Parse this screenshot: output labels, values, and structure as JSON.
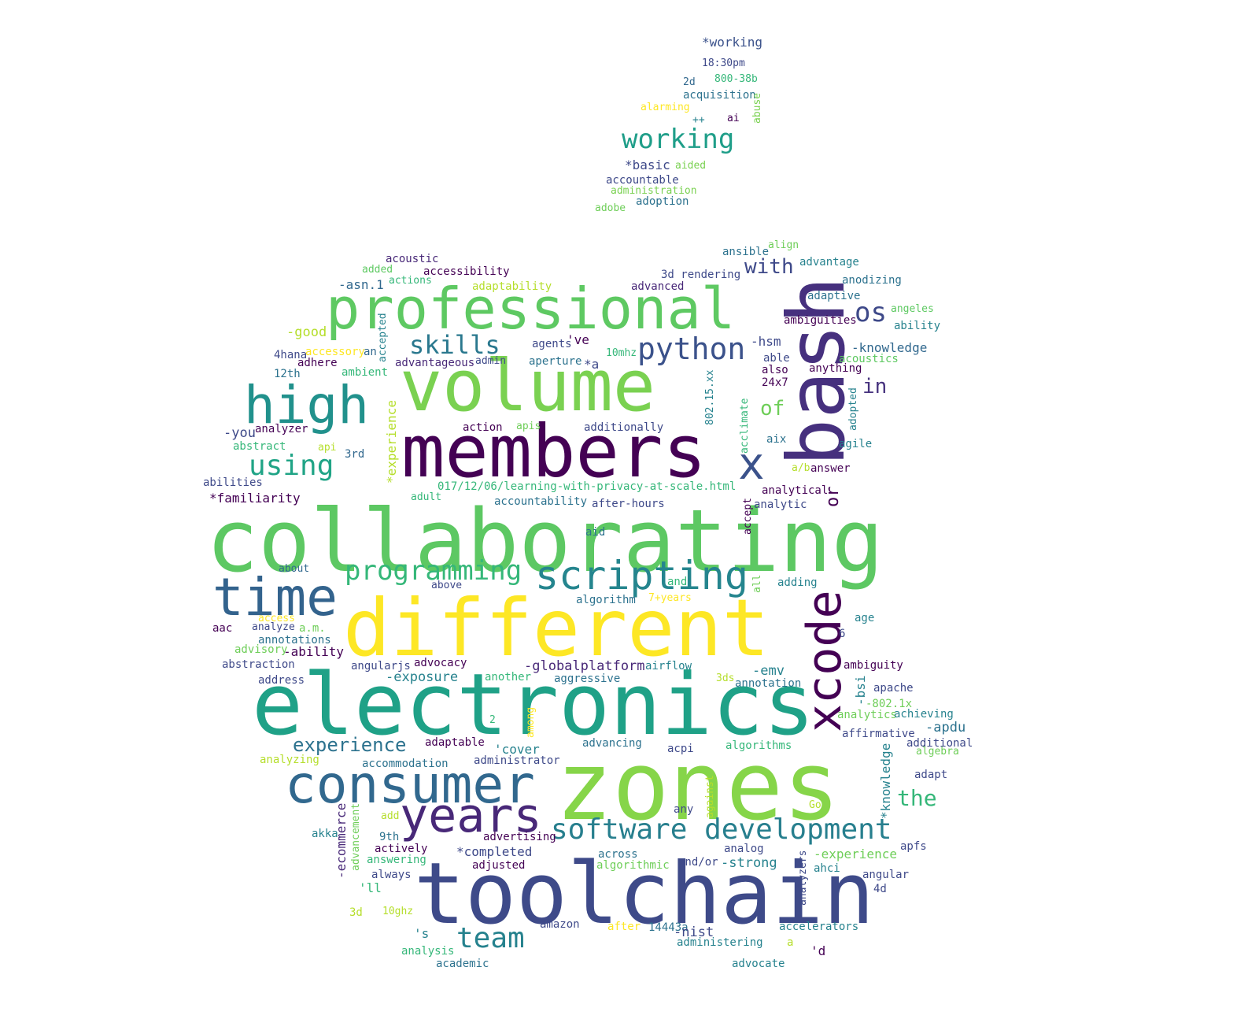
{
  "palette": [
    "#440154",
    "#3b528b",
    "#21908d",
    "#5dc963",
    "#fde725"
  ],
  "words": [
    {
      "text": "collaborating",
      "color": "#5dc863",
      "weight": 1.0
    },
    {
      "text": "zones",
      "color": "#86d549",
      "weight": 0.95
    },
    {
      "text": "toolchain",
      "color": "#3e4a89",
      "weight": 0.9
    },
    {
      "text": "electronics",
      "color": "#1fa187",
      "weight": 0.88
    },
    {
      "text": "different",
      "color": "#fde725",
      "weight": 0.85
    },
    {
      "text": "members",
      "color": "#440154",
      "weight": 0.84
    },
    {
      "text": "volume",
      "color": "#7ad151",
      "weight": 0.82
    },
    {
      "text": "bash",
      "color": "#46307e",
      "weight": 0.8
    },
    {
      "text": "professional",
      "color": "#5ec962",
      "weight": 0.7
    },
    {
      "text": "consumer",
      "color": "#31688e",
      "weight": 0.66
    },
    {
      "text": "xcode",
      "color": "#440154",
      "weight": 0.64
    },
    {
      "text": "high",
      "color": "#21918c",
      "weight": 0.62
    },
    {
      "text": "time",
      "color": "#33638d",
      "weight": 0.6
    },
    {
      "text": "years",
      "color": "#482878",
      "weight": 0.55
    },
    {
      "text": "x",
      "color": "#3b528b",
      "weight": 0.5
    },
    {
      "text": "scripting",
      "color": "#25858e",
      "weight": 0.45
    },
    {
      "text": "software development",
      "color": "#277f8e",
      "weight": 0.4
    },
    {
      "text": "python",
      "color": "#3b528b",
      "weight": 0.36
    },
    {
      "text": "programming",
      "color": "#35b779",
      "weight": 0.34
    },
    {
      "text": "working",
      "color": "#1f9e89",
      "weight": 0.34
    },
    {
      "text": "using",
      "color": "#20a486",
      "weight": 0.33
    },
    {
      "text": "skills",
      "color": "#2a788e",
      "weight": 0.32
    },
    {
      "text": "team",
      "color": "#26828e",
      "weight": 0.32
    },
    {
      "text": "os",
      "color": "#3e4989",
      "weight": 0.32
    },
    {
      "text": "experience",
      "color": "#2c728e",
      "weight": 0.28
    },
    {
      "text": "the",
      "color": "#35b779",
      "weight": 0.28
    },
    {
      "text": "with",
      "color": "#3e4989",
      "weight": 0.26
    },
    {
      "text": "in",
      "color": "#46327e",
      "weight": 0.25
    },
    {
      "text": "of",
      "color": "#6ece58",
      "weight": 0.25
    },
    {
      "text": "or",
      "color": "#440154",
      "weight": 0.22
    },
    {
      "text": "*working",
      "color": "#3b528b",
      "weight": 0.15
    },
    {
      "text": "18:30pm",
      "color": "#3e4989",
      "weight": 0.12
    },
    {
      "text": "2d",
      "color": "#31688e",
      "weight": 0.12
    },
    {
      "text": "800-38b",
      "color": "#35b779",
      "weight": 0.12
    },
    {
      "text": "acquisition",
      "color": "#2c728e",
      "weight": 0.12
    },
    {
      "text": "abuse",
      "color": "#7ad151",
      "weight": 0.12
    },
    {
      "text": "alarming",
      "color": "#fde725",
      "weight": 0.12
    },
    {
      "text": "++",
      "color": "#26828e",
      "weight": 0.12
    },
    {
      "text": "ai",
      "color": "#440154",
      "weight": 0.12
    },
    {
      "text": "*basic",
      "color": "#3e4989",
      "weight": 0.14
    },
    {
      "text": "aided",
      "color": "#7ad151",
      "weight": 0.12
    },
    {
      "text": "accountable",
      "color": "#3e4989",
      "weight": 0.12
    },
    {
      "text": "administration",
      "color": "#7ad151",
      "weight": 0.12
    },
    {
      "text": "adobe",
      "color": "#6ece58",
      "weight": 0.12
    },
    {
      "text": "adoption",
      "color": "#2c728e",
      "weight": 0.12
    },
    {
      "text": "acoustic",
      "color": "#482878",
      "weight": 0.12
    },
    {
      "text": "added",
      "color": "#5ec962",
      "weight": 0.12
    },
    {
      "text": "accessibility",
      "color": "#440154",
      "weight": 0.12
    },
    {
      "text": "actions",
      "color": "#35b779",
      "weight": 0.12
    },
    {
      "text": "-asn.1",
      "color": "#31688e",
      "weight": 0.14
    },
    {
      "text": "adaptability",
      "color": "#b5de2b",
      "weight": 0.12
    },
    {
      "text": "advanced",
      "color": "#482878",
      "weight": 0.12
    },
    {
      "text": "3d rendering",
      "color": "#3e4989",
      "weight": 0.12
    },
    {
      "text": "ansible",
      "color": "#2c728e",
      "weight": 0.12
    },
    {
      "text": "align",
      "color": "#6ece58",
      "weight": 0.12
    },
    {
      "text": "advantage",
      "color": "#26828e",
      "weight": 0.12
    },
    {
      "text": "anodizing",
      "color": "#2c728e",
      "weight": 0.12
    },
    {
      "text": "adaptive",
      "color": "#2c728e",
      "weight": 0.12
    },
    {
      "text": "ambiguities",
      "color": "#440154",
      "weight": 0.12
    },
    {
      "text": "angeles",
      "color": "#5ec962",
      "weight": 0.12
    },
    {
      "text": "ability",
      "color": "#26828e",
      "weight": 0.12
    },
    {
      "text": "-good",
      "color": "#b5de2b",
      "weight": 0.14
    },
    {
      "text": "accepted",
      "color": "#26828e",
      "weight": 0.12
    },
    {
      "text": "agents",
      "color": "#3e4989",
      "weight": 0.12
    },
    {
      "text": "'ve",
      "color": "#440154",
      "weight": 0.14
    },
    {
      "text": "-hsm",
      "color": "#3e4989",
      "weight": 0.14
    },
    {
      "text": "-knowledge",
      "color": "#31688e",
      "weight": 0.14
    },
    {
      "text": "acoustics",
      "color": "#5ec962",
      "weight": 0.12
    },
    {
      "text": "4hana",
      "color": "#3e4989",
      "weight": 0.12
    },
    {
      "text": "accessory",
      "color": "#fde725",
      "weight": 0.12
    },
    {
      "text": "an",
      "color": "#31688e",
      "weight": 0.12
    },
    {
      "text": "adhere",
      "color": "#440154",
      "weight": 0.12
    },
    {
      "text": "advantageous",
      "color": "#482878",
      "weight": 0.12
    },
    {
      "text": "admin",
      "color": "#3e4989",
      "weight": 0.12
    },
    {
      "text": "aperture",
      "color": "#2c728e",
      "weight": 0.12
    },
    {
      "text": "*a",
      "color": "#3e4989",
      "weight": 0.14
    },
    {
      "text": "10mhz",
      "color": "#35b779",
      "weight": 0.12
    },
    {
      "text": "able",
      "color": "#3e4989",
      "weight": 0.12
    },
    {
      "text": "also",
      "color": "#440154",
      "weight": 0.12
    },
    {
      "text": "anything",
      "color": "#440154",
      "weight": 0.12
    },
    {
      "text": "12th",
      "color": "#2c728e",
      "weight": 0.12
    },
    {
      "text": "ambient",
      "color": "#35b779",
      "weight": 0.12
    },
    {
      "text": "24x7",
      "color": "#440154",
      "weight": 0.12
    },
    {
      "text": "802.15.xx",
      "color": "#26828e",
      "weight": 0.12
    },
    {
      "text": "*experience",
      "color": "#b5de2b",
      "weight": 0.14
    },
    {
      "text": "acclimate",
      "color": "#35b779",
      "weight": 0.12
    },
    {
      "text": "adopted",
      "color": "#26828e",
      "weight": 0.12
    },
    {
      "text": "action",
      "color": "#440154",
      "weight": 0.12
    },
    {
      "text": "apis",
      "color": "#6ece58",
      "weight": 0.12
    },
    {
      "text": "additionally",
      "color": "#3e4989",
      "weight": 0.12
    },
    {
      "text": "analyzer",
      "color": "#440154",
      "weight": 0.12
    },
    {
      "text": "-you",
      "color": "#3e4989",
      "weight": 0.14
    },
    {
      "text": "aix",
      "color": "#2c728e",
      "weight": 0.12
    },
    {
      "text": "agile",
      "color": "#26828e",
      "weight": 0.12
    },
    {
      "text": "abstract",
      "color": "#35b779",
      "weight": 0.12
    },
    {
      "text": "api",
      "color": "#b5de2b",
      "weight": 0.12
    },
    {
      "text": "3rd",
      "color": "#31688e",
      "weight": 0.12
    },
    {
      "text": "a/b",
      "color": "#b5de2b",
      "weight": 0.12
    },
    {
      "text": "answer",
      "color": "#440154",
      "weight": 0.12
    },
    {
      "text": "abilities",
      "color": "#3e4989",
      "weight": 0.12
    },
    {
      "text": "017/12/06/learning-with-privacy-at-scale.html",
      "color": "#35b779",
      "weight": 0.12
    },
    {
      "text": "analytical",
      "color": "#440154",
      "weight": 0.12
    },
    {
      "text": "*familiarity",
      "color": "#440154",
      "weight": 0.14
    },
    {
      "text": "adult",
      "color": "#35b779",
      "weight": 0.12
    },
    {
      "text": "accountability",
      "color": "#2c728e",
      "weight": 0.12
    },
    {
      "text": "after-hours",
      "color": "#3e4989",
      "weight": 0.12
    },
    {
      "text": "accept",
      "color": "#440154",
      "weight": 0.12
    },
    {
      "text": "analytic",
      "color": "#3e4989",
      "weight": 0.12
    },
    {
      "text": "aid",
      "color": "#2c728e",
      "weight": 0.12
    },
    {
      "text": "about",
      "color": "#31688e",
      "weight": 0.12
    },
    {
      "text": "above",
      "color": "#3e4989",
      "weight": 0.12
    },
    {
      "text": "and",
      "color": "#35b779",
      "weight": 0.12
    },
    {
      "text": "all",
      "color": "#6ece58",
      "weight": 0.12
    },
    {
      "text": "adding",
      "color": "#26828e",
      "weight": 0.12
    },
    {
      "text": "algorithm",
      "color": "#2c728e",
      "weight": 0.12
    },
    {
      "text": "7+years",
      "color": "#fde725",
      "weight": 0.12
    },
    {
      "text": "access",
      "color": "#fde725",
      "weight": 0.12
    },
    {
      "text": "age",
      "color": "#26828e",
      "weight": 0.12
    },
    {
      "text": "aac",
      "color": "#440154",
      "weight": 0.12
    },
    {
      "text": "analyze",
      "color": "#3e4989",
      "weight": 0.12
    },
    {
      "text": "a.m.",
      "color": "#6ece58",
      "weight": 0.12
    },
    {
      "text": "6",
      "color": "#3e4989",
      "weight": 0.12
    },
    {
      "text": "annotations",
      "color": "#2c728e",
      "weight": 0.12
    },
    {
      "text": "advisory",
      "color": "#6ece58",
      "weight": 0.12
    },
    {
      "text": "-ability",
      "color": "#440154",
      "weight": 0.14
    },
    {
      "text": "abstraction",
      "color": "#3e4989",
      "weight": 0.12
    },
    {
      "text": "angularjs",
      "color": "#3e4989",
      "weight": 0.12
    },
    {
      "text": "advocacy",
      "color": "#440154",
      "weight": 0.12
    },
    {
      "text": "-globalplatform",
      "color": "#482878",
      "weight": 0.14
    },
    {
      "text": "airflow",
      "color": "#26828e",
      "weight": 0.12
    },
    {
      "text": "ambiguity",
      "color": "#440154",
      "weight": 0.12
    },
    {
      "text": "address",
      "color": "#3e4989",
      "weight": 0.12
    },
    {
      "text": "-exposure",
      "color": "#26828e",
      "weight": 0.14
    },
    {
      "text": "another",
      "color": "#35b779",
      "weight": 0.12
    },
    {
      "text": "aggressive",
      "color": "#2c728e",
      "weight": 0.12
    },
    {
      "text": "-emv",
      "color": "#26828e",
      "weight": 0.14
    },
    {
      "text": "3ds",
      "color": "#b5de2b",
      "weight": 0.12
    },
    {
      "text": "annotation",
      "color": "#2c728e",
      "weight": 0.12
    },
    {
      "text": "-bsi",
      "color": "#26828e",
      "weight": 0.14
    },
    {
      "text": "apache",
      "color": "#3e4989",
      "weight": 0.12
    },
    {
      "text": "-802.1x",
      "color": "#6ece58",
      "weight": 0.12
    },
    {
      "text": "analytics",
      "color": "#6ece58",
      "weight": 0.12
    },
    {
      "text": "achieving",
      "color": "#26828e",
      "weight": 0.12
    },
    {
      "text": "2",
      "color": "#35b779",
      "weight": 0.12
    },
    {
      "text": "among",
      "color": "#fde725",
      "weight": 0.12
    },
    {
      "text": "-apdu",
      "color": "#2c728e",
      "weight": 0.14
    },
    {
      "text": "affirmative",
      "color": "#3e4989",
      "weight": 0.12
    },
    {
      "text": "adaptable",
      "color": "#440154",
      "weight": 0.12
    },
    {
      "text": "'cover",
      "color": "#26828e",
      "weight": 0.14
    },
    {
      "text": "advancing",
      "color": "#2c728e",
      "weight": 0.12
    },
    {
      "text": "acpi",
      "color": "#3e4989",
      "weight": 0.12
    },
    {
      "text": "algorithms",
      "color": "#35b779",
      "weight": 0.12
    },
    {
      "text": "additional",
      "color": "#3e4989",
      "weight": 0.12
    },
    {
      "text": "algebra",
      "color": "#6ece58",
      "weight": 0.12
    },
    {
      "text": "analyzing",
      "color": "#b5de2b",
      "weight": 0.12
    },
    {
      "text": "accommodation",
      "color": "#2c728e",
      "weight": 0.12
    },
    {
      "text": "administrator",
      "color": "#3e4989",
      "weight": 0.12
    },
    {
      "text": "*knowledge",
      "color": "#26828e",
      "weight": 0.14
    },
    {
      "text": "adapt",
      "color": "#3e4989",
      "weight": 0.12
    },
    {
      "text": "against",
      "color": "#b5de2b",
      "weight": 0.12
    },
    {
      "text": "-ecommerce",
      "color": "#482878",
      "weight": 0.14
    },
    {
      "text": "advancement",
      "color": "#6ece58",
      "weight": 0.12
    },
    {
      "text": "add",
      "color": "#b5de2b",
      "weight": 0.12
    },
    {
      "text": "any",
      "color": "#3e4989",
      "weight": 0.12
    },
    {
      "text": "Go",
      "color": "#b5de2b",
      "weight": 0.12
    },
    {
      "text": "akka",
      "color": "#26828e",
      "weight": 0.12
    },
    {
      "text": "9th",
      "color": "#2c728e",
      "weight": 0.12
    },
    {
      "text": "advertising",
      "color": "#440154",
      "weight": 0.12
    },
    {
      "text": "analog",
      "color": "#3e4989",
      "weight": 0.12
    },
    {
      "text": "apfs",
      "color": "#3e4989",
      "weight": 0.12
    },
    {
      "text": "actively",
      "color": "#440154",
      "weight": 0.12
    },
    {
      "text": "*completed",
      "color": "#3e4989",
      "weight": 0.14
    },
    {
      "text": "across",
      "color": "#2c728e",
      "weight": 0.12
    },
    {
      "text": "-experience",
      "color": "#6ece58",
      "weight": 0.14
    },
    {
      "text": "answering",
      "color": "#35b779",
      "weight": 0.12
    },
    {
      "text": "adjusted",
      "color": "#440154",
      "weight": 0.12
    },
    {
      "text": "algorithmic",
      "color": "#6ece58",
      "weight": 0.12
    },
    {
      "text": "and/or",
      "color": "#3e4989",
      "weight": 0.12
    },
    {
      "text": "-strong",
      "color": "#26828e",
      "weight": 0.14
    },
    {
      "text": "analyzers",
      "color": "#3e4989",
      "weight": 0.12
    },
    {
      "text": "ahci",
      "color": "#26828e",
      "weight": 0.12
    },
    {
      "text": "always",
      "color": "#3e4989",
      "weight": 0.12
    },
    {
      "text": "'ll",
      "color": "#35b779",
      "weight": 0.14
    },
    {
      "text": "angular",
      "color": "#3e4989",
      "weight": 0.12
    },
    {
      "text": "4d",
      "color": "#3e4989",
      "weight": 0.12
    },
    {
      "text": "3d",
      "color": "#b5de2b",
      "weight": 0.12
    },
    {
      "text": "10ghz",
      "color": "#b5de2b",
      "weight": 0.12
    },
    {
      "text": "'s",
      "color": "#26828e",
      "weight": 0.14
    },
    {
      "text": "amazon",
      "color": "#3e4989",
      "weight": 0.12
    },
    {
      "text": "after",
      "color": "#fde725",
      "weight": 0.12
    },
    {
      "text": "14443a",
      "color": "#2c728e",
      "weight": 0.12
    },
    {
      "text": "-nist",
      "color": "#3e4989",
      "weight": 0.14
    },
    {
      "text": "accelerators",
      "color": "#26828e",
      "weight": 0.12
    },
    {
      "text": "a",
      "color": "#b5de2b",
      "weight": 0.12
    },
    {
      "text": "administering",
      "color": "#26828e",
      "weight": 0.12
    },
    {
      "text": "'d",
      "color": "#440154",
      "weight": 0.14
    },
    {
      "text": "analysis",
      "color": "#35b779",
      "weight": 0.12
    },
    {
      "text": "academic",
      "color": "#2c728e",
      "weight": 0.12
    },
    {
      "text": "advocate",
      "color": "#26828e",
      "weight": 0.12
    }
  ]
}
